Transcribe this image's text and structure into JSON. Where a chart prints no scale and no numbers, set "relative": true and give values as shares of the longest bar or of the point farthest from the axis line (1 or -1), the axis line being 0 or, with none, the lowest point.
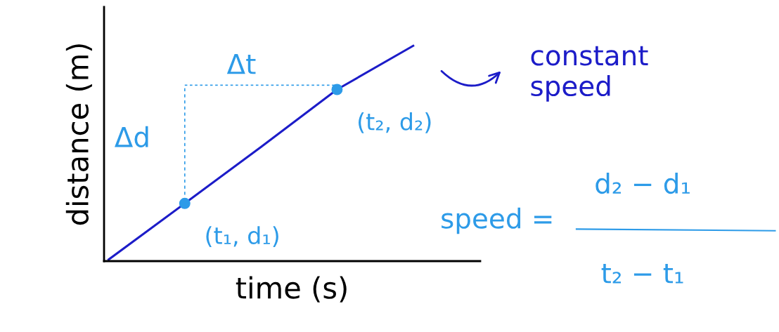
{
  "chart_data": {
    "type": "line",
    "relative": true,
    "xlabel": "time (s)",
    "ylabel": "distance (m)",
    "categories": [
      null,
      null,
      null,
      null,
      null
    ],
    "series": [
      {
        "color": "#1c1cc8",
        "values": [
          0.007,
          0.268,
          0.53,
          0.797,
          1
        ]
      }
    ],
    "annotations": [
      "(t₁, d₁)",
      "(t₂, d₂)",
      "Δt",
      "Δd",
      "constant\nspeed",
      "speed =",
      "d₂ − d₁",
      "t₂ − t₁"
    ],
    "legend": false
  }
}
